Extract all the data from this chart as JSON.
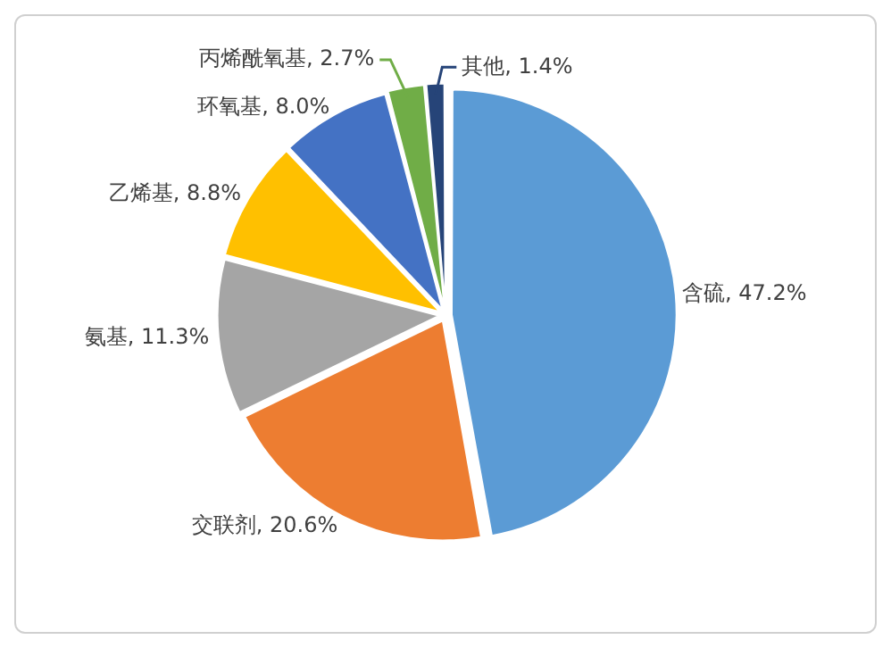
{
  "chart_data": {
    "type": "pie",
    "categories": [
      "含硫",
      "交联剂",
      "氨基",
      "乙烯基",
      "环氧基",
      "丙烯酰氧基",
      "其他"
    ],
    "values": [
      47.2,
      20.6,
      11.3,
      8.8,
      8.0,
      2.7,
      1.4
    ],
    "value_labels": [
      "47.2%",
      "20.6%",
      "11.3%",
      "8.8%",
      "8.0%",
      "2.7%",
      "1.4%"
    ],
    "colors": [
      "#5b9bd5",
      "#ed7d31",
      "#a5a5a5",
      "#ffc000",
      "#4472c4",
      "#70ad47",
      "#264478"
    ],
    "legend": false
  }
}
